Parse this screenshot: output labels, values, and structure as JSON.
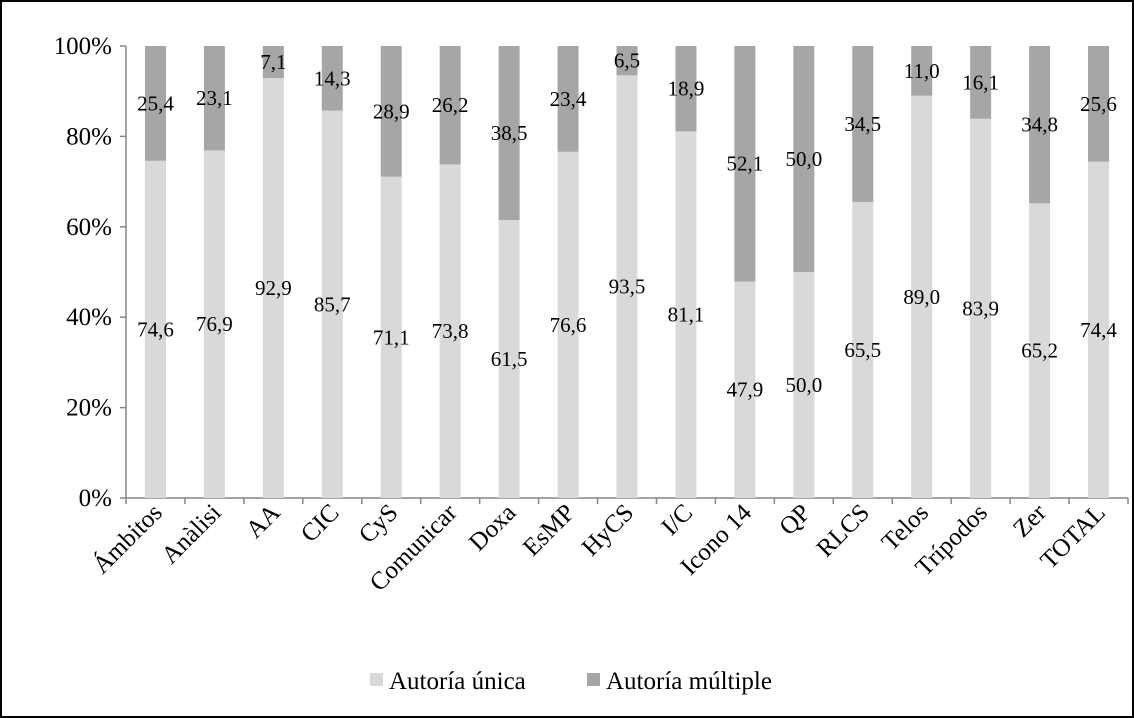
{
  "chart_data": {
    "type": "bar",
    "stacked": true,
    "categories": [
      "Ámbitos",
      "Anàlisi",
      "AA",
      "CIC",
      "CyS",
      "Comunicar",
      "Doxa",
      "EsMP",
      "HyCS",
      "I/C",
      "Icono 14",
      "QP",
      "RLCS",
      "Telos",
      "Trípodos",
      "Zer",
      "TOTAL"
    ],
    "series": [
      {
        "name": "Autoría única",
        "color": "#d9d9d9",
        "values": [
          74.6,
          76.9,
          92.9,
          85.7,
          71.1,
          73.8,
          61.5,
          76.6,
          93.5,
          81.1,
          47.9,
          50.0,
          65.5,
          89.0,
          83.9,
          65.2,
          74.4
        ],
        "labels": [
          "74,6",
          "76,9",
          "92,9",
          "85,7",
          "71,1",
          "73,8",
          "61,5",
          "76,6",
          "93,5",
          "81,1",
          "47,9",
          "50,0",
          "65,5",
          "89,0",
          "83,9",
          "65,2",
          "74,4"
        ]
      },
      {
        "name": "Autoría múltiple",
        "color": "#a6a6a6",
        "values": [
          25.4,
          23.1,
          7.1,
          14.3,
          28.9,
          26.2,
          38.5,
          23.4,
          6.5,
          18.9,
          52.1,
          50.0,
          34.5,
          11.0,
          16.1,
          34.8,
          25.6
        ],
        "labels": [
          "25,4",
          "23,1",
          "7,1",
          "14,3",
          "28,9",
          "26,2",
          "38,5",
          "23,4",
          "6,5",
          "18,9",
          "52,1",
          "50,0",
          "34,5",
          "11,0",
          "16,1",
          "34,8",
          "25,6"
        ]
      }
    ],
    "ylim": [
      0,
      100
    ],
    "yticks": [
      "0%",
      "20%",
      "40%",
      "60%",
      "80%",
      "100%"
    ],
    "legend": "bottom",
    "grid": false
  }
}
